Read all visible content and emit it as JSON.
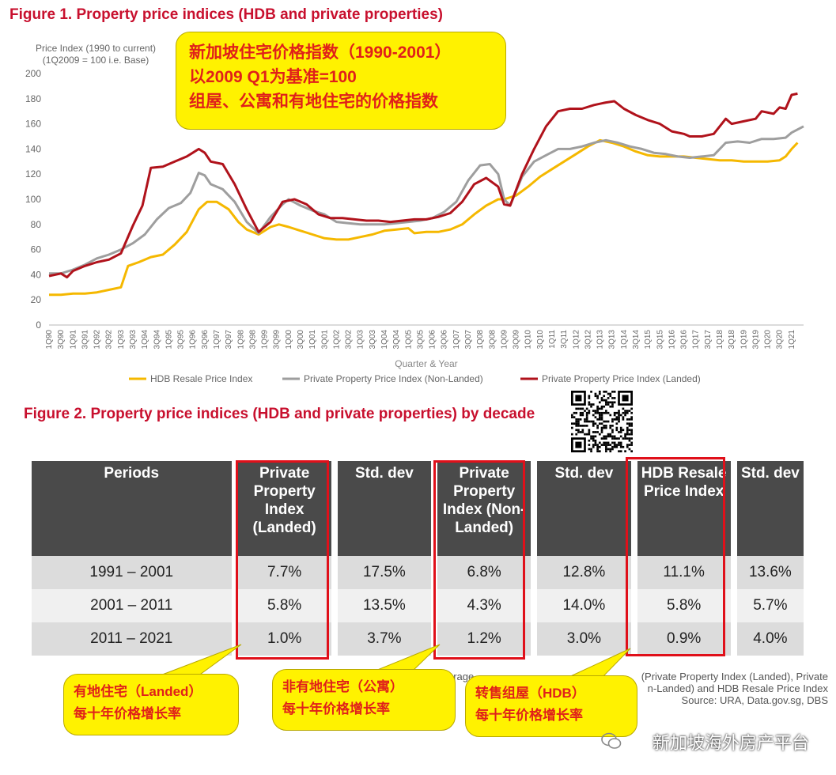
{
  "figure1": {
    "title": "Figure 1. Property price indices (HDB and private properties)",
    "ylabel_line1": "Price Index (1990 to current)",
    "ylabel_line2": "(1Q2009 = 100 i.e. Base)",
    "xlabel": "Quarter & Year",
    "legend": [
      "HDB Resale Price Index",
      "Private Property Price Index (Non-Landed)",
      "Private Property Price Index (Landed)"
    ]
  },
  "callout_top": {
    "line1": "新加坡住宅价格指数（1990-2001）",
    "line2": "以2009 Q1为基准=100",
    "line3": "组屋、公寓和有地住宅的价格指数"
  },
  "chart_data": {
    "type": "line",
    "title": "Figure 1. Property price indices (HDB and private properties)",
    "xlabel": "Quarter & Year",
    "ylabel": "Price Index (1990 to current) (1Q2009 = 100 i.e. Base)",
    "ylim": [
      0,
      200
    ],
    "yticks": [
      0,
      20,
      40,
      60,
      80,
      100,
      120,
      140,
      160,
      180,
      200
    ],
    "grid": false,
    "legend_position": "bottom",
    "x_tick_labels": [
      "1Q90",
      "3Q90",
      "1Q91",
      "3Q91",
      "1Q92",
      "3Q92",
      "1Q93",
      "3Q93",
      "1Q94",
      "3Q94",
      "1Q95",
      "3Q95",
      "1Q96",
      "3Q96",
      "1Q97",
      "3Q97",
      "1Q98",
      "3Q98",
      "1Q99",
      "3Q99",
      "1Q00",
      "3Q00",
      "1Q01",
      "3Q01",
      "1Q02",
      "3Q02",
      "1Q03",
      "3Q03",
      "1Q04",
      "3Q04",
      "1Q05",
      "3Q05",
      "1Q06",
      "3Q06",
      "1Q07",
      "3Q07",
      "1Q08",
      "3Q08",
      "1Q09",
      "3Q09",
      "1Q10",
      "3Q10",
      "1Q11",
      "3Q11",
      "1Q12",
      "3Q12",
      "1Q13",
      "3Q13",
      "1Q14",
      "3Q14",
      "1Q15",
      "3Q15",
      "1Q16",
      "3Q16",
      "1Q17",
      "3Q17",
      "1Q18",
      "3Q18",
      "1Q19",
      "3Q19",
      "1Q20",
      "3Q20",
      "1Q21"
    ],
    "x": [
      1990.0,
      1991.0,
      1992.0,
      1993.0,
      1994.0,
      1995.0,
      1996.0,
      1997.0,
      1998.0,
      1999.0,
      2000.0,
      2001.0,
      2002.0,
      2003.0,
      2004.0,
      2005.0,
      2006.0,
      2007.0,
      2008.0,
      2009.0,
      2010.0,
      2011.0,
      2012.0,
      2013.0,
      2014.0,
      2015.0,
      2016.0,
      2017.0,
      2018.0,
      2019.0,
      2020.0,
      2021.0
    ],
    "series": [
      {
        "name": "HDB Resale Price Index",
        "color": "#f5b800",
        "points": [
          [
            1990.0,
            24
          ],
          [
            1990.5,
            24
          ],
          [
            1991.0,
            25
          ],
          [
            1991.5,
            25
          ],
          [
            1992.0,
            26
          ],
          [
            1992.5,
            28
          ],
          [
            1993.0,
            30
          ],
          [
            1993.3,
            47
          ],
          [
            1993.75,
            50
          ],
          [
            1994.25,
            54
          ],
          [
            1994.75,
            56
          ],
          [
            1995.25,
            64
          ],
          [
            1995.75,
            74
          ],
          [
            1996.25,
            92
          ],
          [
            1996.6,
            98
          ],
          [
            1997.0,
            98
          ],
          [
            1997.5,
            92
          ],
          [
            1997.9,
            82
          ],
          [
            1998.25,
            76
          ],
          [
            1998.75,
            72
          ],
          [
            1999.25,
            78
          ],
          [
            1999.6,
            80
          ],
          [
            2000.0,
            78
          ],
          [
            2000.5,
            75
          ],
          [
            2001.0,
            72
          ],
          [
            2001.5,
            69
          ],
          [
            2002.0,
            68
          ],
          [
            2002.5,
            68
          ],
          [
            2003.0,
            70
          ],
          [
            2003.5,
            72
          ],
          [
            2004.0,
            75
          ],
          [
            2004.5,
            76
          ],
          [
            2005.0,
            77
          ],
          [
            2005.25,
            73
          ],
          [
            2005.75,
            74
          ],
          [
            2006.25,
            74
          ],
          [
            2006.75,
            76
          ],
          [
            2007.25,
            80
          ],
          [
            2007.75,
            88
          ],
          [
            2008.25,
            95
          ],
          [
            2008.75,
            100
          ],
          [
            2009.0,
            100
          ],
          [
            2009.5,
            103
          ],
          [
            2010.0,
            110
          ],
          [
            2010.5,
            118
          ],
          [
            2011.0,
            124
          ],
          [
            2011.5,
            130
          ],
          [
            2012.0,
            136
          ],
          [
            2012.5,
            142
          ],
          [
            2013.0,
            147
          ],
          [
            2013.5,
            145
          ],
          [
            2014.0,
            142
          ],
          [
            2014.5,
            138
          ],
          [
            2015.0,
            135
          ],
          [
            2015.5,
            134
          ],
          [
            2016.0,
            134
          ],
          [
            2016.5,
            134
          ],
          [
            2017.0,
            133
          ],
          [
            2017.5,
            132
          ],
          [
            2018.0,
            131
          ],
          [
            2018.5,
            131
          ],
          [
            2019.0,
            130
          ],
          [
            2019.5,
            130
          ],
          [
            2020.0,
            130
          ],
          [
            2020.5,
            131
          ],
          [
            2020.75,
            134
          ],
          [
            2021.0,
            140
          ],
          [
            2021.25,
            145
          ]
        ]
      },
      {
        "name": "Private Property Price Index (Non-Landed)",
        "color": "#9e9e9e",
        "points": [
          [
            1990.0,
            41
          ],
          [
            1990.5,
            41
          ],
          [
            1991.0,
            44
          ],
          [
            1991.5,
            48
          ],
          [
            1992.0,
            53
          ],
          [
            1992.5,
            56
          ],
          [
            1993.0,
            60
          ],
          [
            1993.5,
            65
          ],
          [
            1994.0,
            72
          ],
          [
            1994.5,
            84
          ],
          [
            1995.0,
            93
          ],
          [
            1995.5,
            97
          ],
          [
            1995.9,
            105
          ],
          [
            1996.25,
            121
          ],
          [
            1996.5,
            119
          ],
          [
            1996.75,
            112
          ],
          [
            1997.25,
            108
          ],
          [
            1997.75,
            98
          ],
          [
            1998.25,
            82
          ],
          [
            1998.75,
            73
          ],
          [
            1999.25,
            86
          ],
          [
            1999.75,
            96
          ],
          [
            2000.0,
            100
          ],
          [
            2000.5,
            95
          ],
          [
            2001.0,
            91
          ],
          [
            2001.5,
            88
          ],
          [
            2002.0,
            82
          ],
          [
            2002.5,
            81
          ],
          [
            2003.0,
            80
          ],
          [
            2003.5,
            80
          ],
          [
            2004.0,
            80
          ],
          [
            2004.5,
            81
          ],
          [
            2005.0,
            82
          ],
          [
            2005.5,
            83
          ],
          [
            2006.0,
            85
          ],
          [
            2006.5,
            90
          ],
          [
            2007.0,
            98
          ],
          [
            2007.5,
            115
          ],
          [
            2008.0,
            127
          ],
          [
            2008.4,
            128
          ],
          [
            2008.75,
            120
          ],
          [
            2009.0,
            100
          ],
          [
            2009.25,
            95
          ],
          [
            2009.75,
            118
          ],
          [
            2010.25,
            130
          ],
          [
            2010.75,
            135
          ],
          [
            2011.25,
            140
          ],
          [
            2011.75,
            140
          ],
          [
            2012.25,
            142
          ],
          [
            2012.75,
            145
          ],
          [
            2013.25,
            147
          ],
          [
            2013.75,
            145
          ],
          [
            2014.25,
            142
          ],
          [
            2014.75,
            140
          ],
          [
            2015.25,
            137
          ],
          [
            2015.75,
            136
          ],
          [
            2016.25,
            134
          ],
          [
            2016.75,
            133
          ],
          [
            2017.25,
            134
          ],
          [
            2017.75,
            135
          ],
          [
            2018.0,
            140
          ],
          [
            2018.25,
            145
          ],
          [
            2018.75,
            146
          ],
          [
            2019.25,
            145
          ],
          [
            2019.75,
            148
          ],
          [
            2020.25,
            148
          ],
          [
            2020.75,
            149
          ],
          [
            2021.0,
            153
          ],
          [
            2021.5,
            158
          ]
        ]
      },
      {
        "name": "Private Property Price Index (Landed)",
        "color": "#b0121b",
        "points": [
          [
            1990.0,
            39
          ],
          [
            1990.5,
            41
          ],
          [
            1990.75,
            38
          ],
          [
            1991.0,
            43
          ],
          [
            1991.5,
            47
          ],
          [
            1992.0,
            50
          ],
          [
            1992.5,
            52
          ],
          [
            1993.0,
            57
          ],
          [
            1993.5,
            79
          ],
          [
            1993.9,
            95
          ],
          [
            1994.25,
            125
          ],
          [
            1994.75,
            126
          ],
          [
            1995.25,
            130
          ],
          [
            1995.75,
            134
          ],
          [
            1996.0,
            137
          ],
          [
            1996.25,
            140
          ],
          [
            1996.5,
            137
          ],
          [
            1996.75,
            130
          ],
          [
            1997.25,
            128
          ],
          [
            1997.75,
            112
          ],
          [
            1998.25,
            92
          ],
          [
            1998.75,
            74
          ],
          [
            1999.25,
            82
          ],
          [
            1999.75,
            98
          ],
          [
            2000.25,
            100
          ],
          [
            2000.75,
            96
          ],
          [
            2001.25,
            88
          ],
          [
            2001.75,
            85
          ],
          [
            2002.25,
            85
          ],
          [
            2002.75,
            84
          ],
          [
            2003.25,
            83
          ],
          [
            2003.75,
            83
          ],
          [
            2004.25,
            82
          ],
          [
            2004.75,
            83
          ],
          [
            2005.25,
            84
          ],
          [
            2005.75,
            84
          ],
          [
            2006.25,
            86
          ],
          [
            2006.75,
            89
          ],
          [
            2007.25,
            98
          ],
          [
            2007.75,
            112
          ],
          [
            2008.25,
            117
          ],
          [
            2008.75,
            110
          ],
          [
            2009.0,
            96
          ],
          [
            2009.25,
            95
          ],
          [
            2009.75,
            120
          ],
          [
            2010.25,
            140
          ],
          [
            2010.75,
            158
          ],
          [
            2011.25,
            170
          ],
          [
            2011.75,
            172
          ],
          [
            2012.25,
            172
          ],
          [
            2012.75,
            175
          ],
          [
            2013.25,
            177
          ],
          [
            2013.6,
            178
          ],
          [
            2014.0,
            172
          ],
          [
            2014.5,
            167
          ],
          [
            2015.0,
            163
          ],
          [
            2015.5,
            160
          ],
          [
            2016.0,
            154
          ],
          [
            2016.5,
            152
          ],
          [
            2016.75,
            150
          ],
          [
            2017.25,
            150
          ],
          [
            2017.75,
            152
          ],
          [
            2018.0,
            158
          ],
          [
            2018.25,
            164
          ],
          [
            2018.5,
            160
          ],
          [
            2019.0,
            162
          ],
          [
            2019.5,
            164
          ],
          [
            2019.75,
            170
          ],
          [
            2020.25,
            168
          ],
          [
            2020.5,
            173
          ],
          [
            2020.75,
            172
          ],
          [
            2021.0,
            183
          ],
          [
            2021.25,
            184
          ]
        ]
      }
    ]
  },
  "figure2": {
    "title": "Figure 2. Property price indices (HDB and private properties) by decade",
    "headers": [
      "Periods",
      "Private Property Index (Landed)",
      "Std. dev",
      "Private Property Index (Non-Landed)",
      "Std. dev",
      "HDB Resale Price Index",
      "Std. dev"
    ],
    "rows": [
      [
        "1991 – 2001",
        "7.7%",
        "17.5%",
        "6.8%",
        "12.8%",
        "11.1%",
        "13.6%"
      ],
      [
        "2001 – 2011",
        "5.8%",
        "13.5%",
        "4.3%",
        "14.0%",
        "5.8%",
        "5.7%"
      ],
      [
        "2011 – 2021",
        "1.0%",
        "3.7%",
        "1.2%",
        "3.0%",
        "0.9%",
        "4.0%"
      ]
    ],
    "source_fragment": "erage",
    "source_note_line1": "(Private Property Index (Landed), Private",
    "source_note_line2": "n-Landed) and HDB Resale Price Index",
    "source_note_line3": "Source: URA, Data.gov.sg, DBS"
  },
  "callouts": {
    "landed": {
      "line1": "有地住宅（Landed）",
      "line2": "每十年价格增长率"
    },
    "nonlanded": {
      "line1": "非有地住宅（公寓）",
      "line2": "每十年价格增长率"
    },
    "hdb": {
      "line1": "转售组屋（HDB）",
      "line2": "每十年价格增长率"
    }
  },
  "watermark": "新加坡海外房产平台",
  "colors": {
    "title": "#c8102e",
    "callout_bg": "#fff200",
    "callout_text": "#e0201a",
    "header_bg": "#4a4a4a",
    "highlight_box": "#e0101a"
  }
}
